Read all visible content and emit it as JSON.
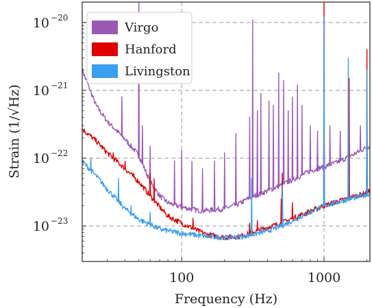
{
  "chart_data": {
    "type": "line",
    "xlabel": "Frequency (Hz)",
    "ylabel": "Strain (1/√Hz)",
    "x_scale": "log",
    "y_scale": "log",
    "xlim": [
      20,
      2100
    ],
    "ylim": [
      3e-24,
      2e-20
    ],
    "x_ticks": [
      {
        "value": 100,
        "label": "100"
      },
      {
        "value": 1000,
        "label": "1000"
      }
    ],
    "y_ticks": [
      {
        "value": 1e-23,
        "base": "10",
        "exp": "−23"
      },
      {
        "value": 1e-22,
        "base": "10",
        "exp": "−22"
      },
      {
        "value": 1e-21,
        "base": "10",
        "exp": "−21"
      },
      {
        "value": 1e-20,
        "base": "10",
        "exp": "−20"
      }
    ],
    "grid": true,
    "legend": "top-left",
    "series": [
      {
        "name": "Virgo",
        "color": "#9b59b6",
        "x": [
          20,
          25,
          30,
          40,
          50,
          60,
          70,
          80,
          100,
          130,
          150,
          200,
          250,
          300,
          400,
          500,
          600,
          800,
          1000,
          1200,
          1500,
          2000,
          2100
        ],
        "y": [
          2e-21,
          6e-22,
          3.5e-22,
          1.9e-22,
          1.1e-22,
          4.5e-23,
          2.8e-23,
          2.2e-23,
          1.9e-23,
          1.7e-23,
          1.7e-23,
          1.8e-23,
          2.1e-23,
          2.6e-23,
          3.3e-23,
          4e-23,
          4.8e-23,
          6.5e-23,
          7.5e-23,
          8.5e-23,
          1.05e-22,
          1.45e-22,
          1.5e-22
        ],
        "peaks": [
          {
            "x": 38,
            "y": 8e-22
          },
          {
            "x": 50,
            "y": 2e-20
          },
          {
            "x": 53,
            "y": 3e-22
          },
          {
            "x": 60,
            "y": 1.5e-22
          },
          {
            "x": 89,
            "y": 9e-23
          },
          {
            "x": 100,
            "y": 1.3e-22
          },
          {
            "x": 118,
            "y": 9e-23
          },
          {
            "x": 140,
            "y": 7e-23
          },
          {
            "x": 170,
            "y": 9e-23
          },
          {
            "x": 200,
            "y": 1.2e-22
          },
          {
            "x": 240,
            "y": 2.3e-22
          },
          {
            "x": 300,
            "y": 4e-22
          },
          {
            "x": 315,
            "y": 1.1e-20
          },
          {
            "x": 340,
            "y": 5e-22
          },
          {
            "x": 360,
            "y": 9e-22
          },
          {
            "x": 410,
            "y": 7e-22
          },
          {
            "x": 440,
            "y": 6e-22
          },
          {
            "x": 480,
            "y": 1.8e-21
          },
          {
            "x": 520,
            "y": 1.4e-21
          },
          {
            "x": 560,
            "y": 5e-22
          },
          {
            "x": 600,
            "y": 8e-22
          },
          {
            "x": 650,
            "y": 1.2e-21
          },
          {
            "x": 700,
            "y": 6e-22
          },
          {
            "x": 800,
            "y": 3e-22
          },
          {
            "x": 900,
            "y": 2.5e-22
          },
          {
            "x": 1000,
            "y": 4e-22
          },
          {
            "x": 1100,
            "y": 3e-22
          },
          {
            "x": 1300,
            "y": 2.5e-22
          },
          {
            "x": 1500,
            "y": 2.5e-22
          },
          {
            "x": 1800,
            "y": 3e-22
          },
          {
            "x": 2000,
            "y": 2.2e-22
          }
        ]
      },
      {
        "name": "Hanford",
        "color": "#e00000",
        "x": [
          20,
          25,
          30,
          40,
          50,
          60,
          70,
          80,
          100,
          130,
          150,
          200,
          250,
          300,
          400,
          500,
          600,
          800,
          1000,
          1200,
          1500,
          2000,
          2100
        ],
        "y": [
          2.7e-22,
          1.8e-22,
          1.2e-22,
          7e-23,
          4.5e-23,
          2.8e-23,
          1.9e-23,
          1.4e-23,
          1.1e-23,
          8.5e-24,
          7.5e-24,
          6.8e-24,
          7e-24,
          7.8e-24,
          9.5e-24,
          1.1e-23,
          1.3e-23,
          1.65e-23,
          2e-23,
          2.25e-23,
          2.6e-23,
          3.1e-23,
          3.3e-23
        ],
        "peaks": [
          {
            "x": 33,
            "y": 1.2e-22
          },
          {
            "x": 40,
            "y": 9e-23
          },
          {
            "x": 46,
            "y": 6e-23
          },
          {
            "x": 60,
            "y": 6e-23
          },
          {
            "x": 64,
            "y": 5e-23
          },
          {
            "x": 120,
            "y": 1.3e-23
          },
          {
            "x": 300,
            "y": 1.1e-23
          },
          {
            "x": 340,
            "y": 1.2e-23
          },
          {
            "x": 500,
            "y": 2.5e-23
          },
          {
            "x": 508,
            "y": 6e-23
          },
          {
            "x": 600,
            "y": 2.2e-23
          },
          {
            "x": 1000,
            "y": 2e-20
          },
          {
            "x": 1500,
            "y": 1.5e-21
          },
          {
            "x": 2000,
            "y": 4e-21
          }
        ]
      },
      {
        "name": "Livingston",
        "color": "#3a9ff0",
        "x": [
          20,
          25,
          30,
          40,
          50,
          60,
          70,
          80,
          100,
          130,
          150,
          200,
          250,
          300,
          400,
          500,
          600,
          800,
          1000,
          1200,
          1500,
          2000,
          2100
        ],
        "y": [
          9e-23,
          5.5e-23,
          3.5e-23,
          1.8e-23,
          1.25e-23,
          1.05e-23,
          9e-24,
          8.5e-24,
          7.8e-24,
          7.3e-24,
          7e-24,
          6.8e-24,
          6.9e-24,
          7.3e-24,
          8.5e-24,
          1e-23,
          1.2e-23,
          1.6e-23,
          2e-23,
          2.2e-23,
          2.5e-23,
          2.9e-23,
          3e-23
        ],
        "peaks": [
          {
            "x": 23,
            "y": 1e-22
          },
          {
            "x": 36,
            "y": 5e-23
          },
          {
            "x": 44,
            "y": 2e-23
          },
          {
            "x": 60,
            "y": 1.6e-23
          },
          {
            "x": 310,
            "y": 5e-23
          },
          {
            "x": 510,
            "y": 4e-23
          },
          {
            "x": 1000,
            "y": 1.2e-20
          },
          {
            "x": 1480,
            "y": 3e-21
          },
          {
            "x": 2000,
            "y": 2e-21
          }
        ]
      }
    ]
  }
}
